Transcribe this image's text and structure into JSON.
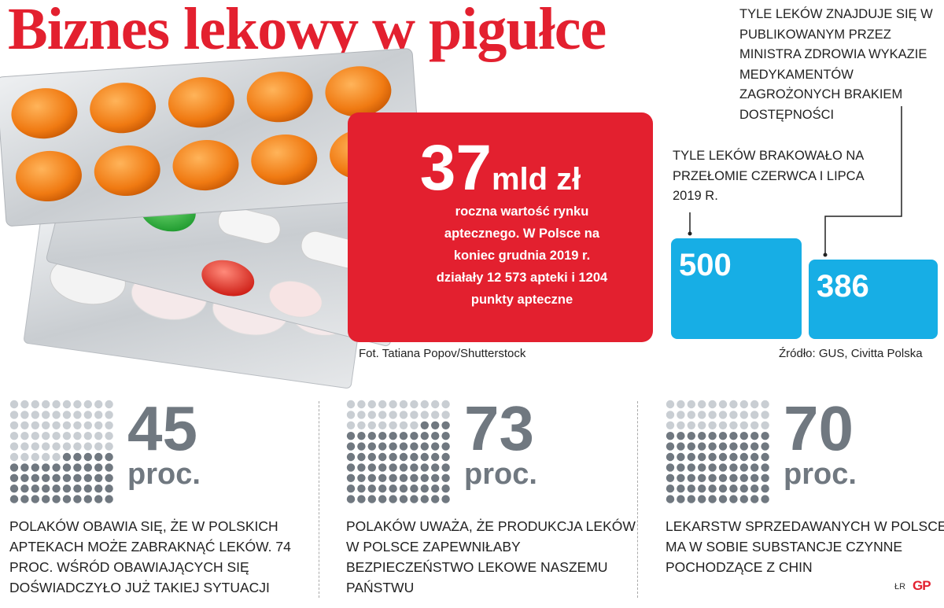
{
  "title": "Biznes lekowy w pigułce",
  "photo_credit": "Fot. Tatiana Popov/Shutterstock",
  "market": {
    "value": "37",
    "unit": "mld zł",
    "description": "roczna wartość rynku aptecznego. W Polsce na koniec grudnia 2019 r. działały 12 573 apteki i 1204 punkty apteczne"
  },
  "shortages": {
    "list_label": "Tyle leków znajduje się w publikowanym przez ministra zdrowia wykazie medykamentów zagrożonych brakiem dostępności",
    "lacking_label": "Tyle leków brakowało na przełomie czerwca i lipca 2019 r.",
    "lacking_value": "500",
    "list_value": "386"
  },
  "source": "Źródło: GUS, Civitta Polska",
  "stats": [
    {
      "value": "45",
      "unit": "proc.",
      "fraction": 0.45,
      "text": "Polaków obawia się, że w polskich aptekach może zabraknąć leków. 74 proc. wśród obawiających się doświadczyło już takiej sytuacji"
    },
    {
      "value": "73",
      "unit": "proc.",
      "fraction": 0.73,
      "text": "Polaków uważa, że produkcja leków w Polsce zapewniłaby bezpieczeństwo lekowe naszemu państwu"
    },
    {
      "value": "70",
      "unit": "proc.",
      "fraction": 0.7,
      "text": "lekarstw sprzedawanych w Polsce ma w sobie substancje czynne pochodzące z Chin"
    }
  ],
  "colors": {
    "red": "#e3202f",
    "blue": "#17aee5",
    "dot_dark": "#707880",
    "dot_light": "#c9ced3"
  },
  "author_mark": "ŁR",
  "logo": "GP"
}
